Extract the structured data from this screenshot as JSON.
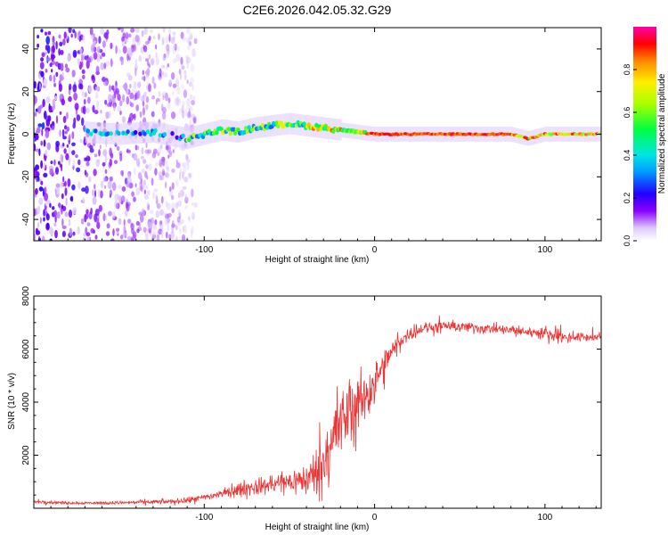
{
  "title": "C2E6.2026.042.05.32.G29",
  "chart_data": [
    {
      "type": "heatmap",
      "name": "spectrogram",
      "xlabel": "Height of straight line (km)",
      "ylabel": "Frequency (Hz)",
      "xlim": [
        -200,
        133
      ],
      "ylim": [
        -50,
        50
      ],
      "xticks": [
        -100,
        0,
        100
      ],
      "xtick_labels": [
        "-100",
        "0",
        "100"
      ],
      "yticks": [
        -40,
        -20,
        0,
        20,
        40
      ],
      "ytick_labels": [
        "-40",
        "-20",
        "0",
        "20",
        "40"
      ],
      "ridge": {
        "x": [
          -170,
          -150,
          -130,
          -110,
          -100,
          -90,
          -80,
          -70,
          -60,
          -50,
          -40,
          -30,
          -20,
          -10,
          0,
          20,
          40,
          60,
          80,
          90,
          100,
          110,
          133
        ],
        "y": [
          1,
          0,
          1,
          -2,
          0,
          2,
          1,
          3,
          4,
          5,
          4,
          3,
          2,
          1,
          0,
          0,
          0,
          0,
          0,
          -2,
          0,
          0,
          0
        ]
      },
      "noise_region_x": [
        -200,
        -105
      ],
      "colorbar": {
        "label": "Normalized spectral amplitude",
        "range": [
          0.0,
          1.0
        ],
        "ticks": [
          0.0,
          0.2,
          0.4,
          0.6,
          0.8
        ],
        "tick_labels": [
          "0.0",
          "0.2",
          "0.4",
          "0.6",
          "0.8"
        ]
      }
    },
    {
      "type": "line",
      "name": "snr",
      "xlabel": "Height of straight line (km)",
      "ylabel": "SNR (10 * v/v)",
      "xlim": [
        -200,
        133
      ],
      "ylim": [
        0,
        8000
      ],
      "xticks": [
        -100,
        0,
        100
      ],
      "xtick_labels": [
        "-100",
        "0",
        "100"
      ],
      "yticks": [
        2000,
        4000,
        6000,
        8000
      ],
      "ytick_labels": [
        "2000",
        "4000",
        "6000",
        "8000"
      ],
      "color": "#ee3333",
      "series": [
        {
          "name": "SNR",
          "x": [
            -200,
            -180,
            -160,
            -140,
            -120,
            -110,
            -100,
            -90,
            -80,
            -70,
            -60,
            -50,
            -40,
            -35,
            -30,
            -25,
            -20,
            -15,
            -10,
            -5,
            0,
            5,
            10,
            15,
            20,
            25,
            30,
            40,
            50,
            60,
            70,
            80,
            90,
            100,
            105,
            108,
            110,
            115,
            120,
            133
          ],
          "y": [
            250,
            200,
            200,
            220,
            250,
            300,
            400,
            550,
            700,
            800,
            900,
            1000,
            1100,
            1300,
            1800,
            2600,
            3200,
            3600,
            3900,
            4300,
            4700,
            5300,
            5900,
            6300,
            6550,
            6700,
            6800,
            6850,
            6850,
            6800,
            6750,
            6700,
            6650,
            6600,
            6550,
            6500,
            6450,
            6450,
            6450,
            6450
          ],
          "noise": [
            80,
            80,
            80,
            100,
            130,
            160,
            200,
            250,
            350,
            450,
            550,
            650,
            900,
            1200,
            1800,
            2000,
            2000,
            1800,
            1700,
            1400,
            1200,
            900,
            600,
            450,
            350,
            300,
            300,
            300,
            300,
            300,
            280,
            280,
            280,
            280,
            300,
            600,
            400,
            250,
            250,
            250
          ]
        }
      ]
    }
  ]
}
